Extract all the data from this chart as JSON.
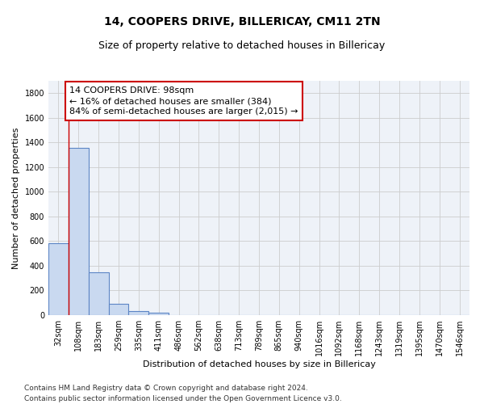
{
  "title": "14, COOPERS DRIVE, BILLERICAY, CM11 2TN",
  "subtitle": "Size of property relative to detached houses in Billericay",
  "xlabel": "Distribution of detached houses by size in Billericay",
  "ylabel": "Number of detached properties",
  "categories": [
    "32sqm",
    "108sqm",
    "183sqm",
    "259sqm",
    "335sqm",
    "411sqm",
    "486sqm",
    "562sqm",
    "638sqm",
    "713sqm",
    "789sqm",
    "865sqm",
    "940sqm",
    "1016sqm",
    "1092sqm",
    "1168sqm",
    "1243sqm",
    "1319sqm",
    "1395sqm",
    "1470sqm",
    "1546sqm"
  ],
  "values": [
    580,
    1355,
    350,
    90,
    30,
    20,
    0,
    0,
    0,
    0,
    0,
    0,
    0,
    0,
    0,
    0,
    0,
    0,
    0,
    0,
    0
  ],
  "bar_color": "#c9d9f0",
  "bar_edge_color": "#5c85c5",
  "bar_linewidth": 0.8,
  "annotation_line1": "14 COOPERS DRIVE: 98sqm",
  "annotation_line2": "← 16% of detached houses are smaller (384)",
  "annotation_line3": "84% of semi-detached houses are larger (2,015) →",
  "ref_line_x": 0.5,
  "ref_line_color": "#cc0000",
  "ylim": [
    0,
    1900
  ],
  "yticks": [
    0,
    200,
    400,
    600,
    800,
    1000,
    1200,
    1400,
    1600,
    1800
  ],
  "grid_color": "#cccccc",
  "bg_color": "#eef2f8",
  "footer_line1": "Contains HM Land Registry data © Crown copyright and database right 2024.",
  "footer_line2": "Contains public sector information licensed under the Open Government Licence v3.0.",
  "title_fontsize": 10,
  "subtitle_fontsize": 9,
  "annot_fontsize": 8,
  "ylabel_fontsize": 8,
  "xlabel_fontsize": 8,
  "tick_fontsize": 7,
  "footer_fontsize": 6.5
}
